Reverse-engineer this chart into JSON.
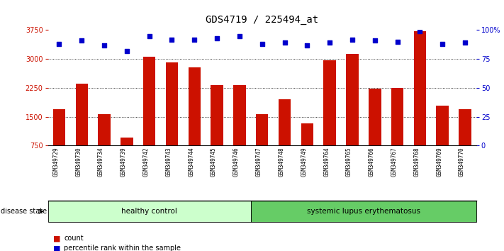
{
  "title": "GDS4719 / 225494_at",
  "samples": [
    "GSM349729",
    "GSM349730",
    "GSM349734",
    "GSM349739",
    "GSM349742",
    "GSM349743",
    "GSM349744",
    "GSM349745",
    "GSM349746",
    "GSM349747",
    "GSM349748",
    "GSM349749",
    "GSM349764",
    "GSM349765",
    "GSM349766",
    "GSM349767",
    "GSM349768",
    "GSM349769",
    "GSM349770"
  ],
  "counts": [
    1700,
    2350,
    1560,
    950,
    3060,
    2920,
    2780,
    2320,
    2320,
    1570,
    1950,
    1320,
    2970,
    3130,
    2230,
    2240,
    3730,
    1790,
    1700
  ],
  "percentiles": [
    88,
    91,
    87,
    82,
    95,
    92,
    92,
    93,
    95,
    88,
    89,
    87,
    89,
    92,
    91,
    90,
    99,
    88,
    89
  ],
  "bar_color": "#cc1100",
  "dot_color": "#0000cc",
  "ylim_left": [
    750,
    3750
  ],
  "ylim_right": [
    0,
    100
  ],
  "yticks_left": [
    750,
    1500,
    2250,
    3000,
    3750
  ],
  "yticks_right": [
    0,
    25,
    50,
    75,
    100
  ],
  "ytick_right_labels": [
    "0",
    "25",
    "50",
    "75",
    "100%"
  ],
  "groups": [
    {
      "label": "healthy control",
      "n": 9,
      "color": "#ccffcc"
    },
    {
      "label": "systemic lupus erythematosus",
      "n": 10,
      "color": "#66cc66"
    }
  ],
  "disease_state_label": "disease state",
  "legend_count_label": "count",
  "legend_percentile_label": "percentile rank within the sample",
  "tick_area_color": "#c8c8c8",
  "title_fontsize": 10,
  "axis_tick_fontsize": 7,
  "sample_label_fontsize": 5.5,
  "group_fontsize": 7.5,
  "legend_fontsize": 7,
  "disease_state_fontsize": 7
}
